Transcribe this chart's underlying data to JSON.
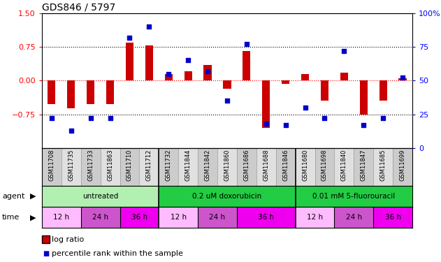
{
  "title": "GDS846 / 5797",
  "samples": [
    "GSM11708",
    "GSM11735",
    "GSM11733",
    "GSM11863",
    "GSM11710",
    "GSM11712",
    "GSM11732",
    "GSM11844",
    "GSM11842",
    "GSM11860",
    "GSM11686",
    "GSM11688",
    "GSM11846",
    "GSM11680",
    "GSM11698",
    "GSM11840",
    "GSM11847",
    "GSM11685",
    "GSM11699"
  ],
  "log_ratio": [
    -0.52,
    -0.62,
    -0.52,
    -0.52,
    0.85,
    0.78,
    0.15,
    0.2,
    0.35,
    -0.18,
    0.65,
    -1.05,
    -0.08,
    0.15,
    -0.45,
    0.18,
    -0.75,
    -0.45,
    0.05
  ],
  "percentile": [
    22,
    13,
    22,
    22,
    82,
    90,
    55,
    65,
    57,
    35,
    77,
    18,
    17,
    30,
    22,
    72,
    17,
    22,
    52
  ],
  "agent_groups": [
    {
      "label": "untreated",
      "start": 0,
      "end": 6,
      "color": "#b2f0b2"
    },
    {
      "label": "0.2 uM doxorubicin",
      "start": 6,
      "end": 13,
      "color": "#33dd55"
    },
    {
      "label": "0.01 mM 5-fluorouracil",
      "start": 13,
      "end": 19,
      "color": "#33dd55"
    }
  ],
  "time_groups": [
    {
      "label": "12 h",
      "start": 0,
      "end": 2,
      "color": "#ffaaff"
    },
    {
      "label": "24 h",
      "start": 2,
      "end": 4,
      "color": "#dd66dd"
    },
    {
      "label": "36 h",
      "start": 4,
      "end": 6,
      "color": "#ee00ee"
    },
    {
      "label": "12 h",
      "start": 6,
      "end": 8,
      "color": "#ffaaff"
    },
    {
      "label": "24 h",
      "start": 8,
      "end": 10,
      "color": "#dd66dd"
    },
    {
      "label": "36 h",
      "start": 10,
      "end": 13,
      "color": "#ee00ee"
    },
    {
      "label": "12 h",
      "start": 13,
      "end": 15,
      "color": "#ffaaff"
    },
    {
      "label": "24 h",
      "start": 15,
      "end": 17,
      "color": "#dd66dd"
    },
    {
      "label": "36 h",
      "start": 17,
      "end": 19,
      "color": "#ee00ee"
    }
  ],
  "bar_color": "#cc0000",
  "dot_color": "#0000cc",
  "ylim_left": [
    -1.5,
    1.5
  ],
  "ylim_right": [
    0,
    100
  ],
  "yticks_left": [
    -0.75,
    0,
    0.75,
    1.5
  ],
  "yticks_right": [
    0,
    25,
    50,
    75,
    100
  ],
  "sample_bg_even": "#cccccc",
  "sample_bg_odd": "#e0e0e0"
}
